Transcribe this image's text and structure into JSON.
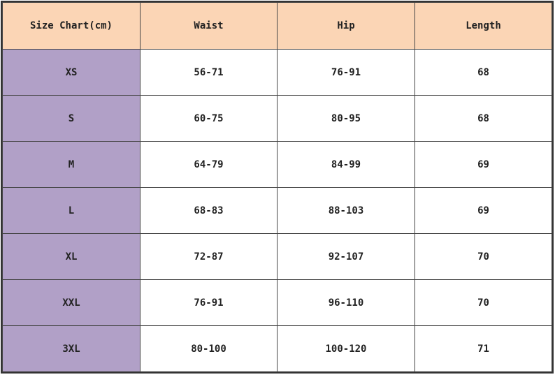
{
  "table": {
    "headers": [
      "Size Chart(cm)",
      "Waist",
      "Hip",
      "Length"
    ],
    "rows": [
      [
        "XS",
        "56-71",
        "76-91",
        "68"
      ],
      [
        "S",
        "60-75",
        "80-95",
        "68"
      ],
      [
        "M",
        "64-79",
        "84-99",
        "69"
      ],
      [
        "L",
        "68-83",
        "88-103",
        "69"
      ],
      [
        "XL",
        "72-87",
        "92-107",
        "70"
      ],
      [
        "XXL",
        "76-91",
        "96-110",
        "70"
      ],
      [
        "3XL",
        "80-100",
        "100-120",
        "71"
      ]
    ]
  },
  "colors": {
    "header_bg": "#fbd5b5",
    "size_column_bg": "#b1a0c7",
    "border": "#444444"
  }
}
